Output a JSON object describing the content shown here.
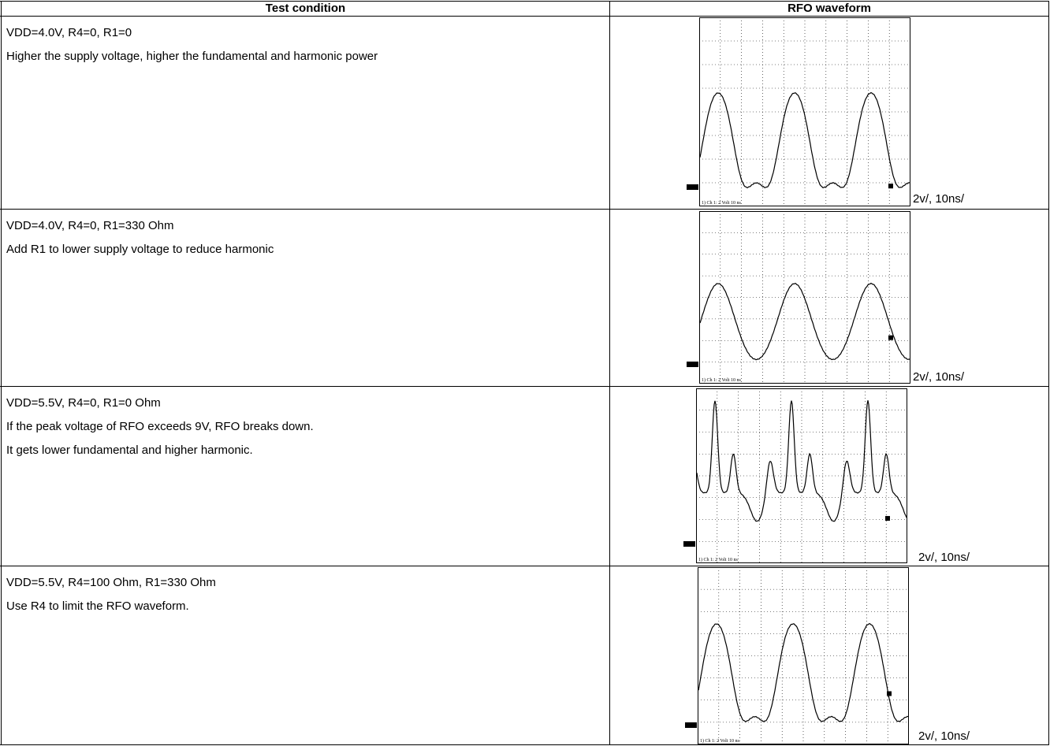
{
  "table": {
    "header": [
      "Test condition",
      "RFO waveform"
    ],
    "rows": [
      {
        "condition": [
          "VDD=4.0V, R4=0, R1=0",
          "Higher the supply voltage, higher the fundamental and harmonic power"
        ],
        "scope_label": "1) Ch 1:    2 Volt  10 ns",
        "scale": "2v/, 10ns/"
      },
      {
        "condition": [
          "VDD=4.0V, R4=0, R1=330 Ohm",
          "Add R1 to lower supply voltage to reduce harmonic"
        ],
        "scope_label": "1) Ch 1:    2 Volt  10 ns",
        "scale": "2v/, 10ns/"
      },
      {
        "condition": [
          "VDD=5.5V, R4=0, R1=0 Ohm",
          "If the peak voltage of RFO exceeds 9V, RFO breaks down.",
          "It gets lower fundamental and higher harmonic."
        ],
        "scope_label": "1) Ch 1:    2 Volt  10 ns",
        "scale": "2v/, 10ns/"
      },
      {
        "condition": [
          "VDD=5.5V, R4=100 Ohm, R1=330 Ohm",
          "Use R4 to limit the RFO waveform."
        ],
        "scope_label": "1) Ch 1:    2 Volt  10 ns",
        "scale": "2v/, 10ns/"
      }
    ]
  }
}
